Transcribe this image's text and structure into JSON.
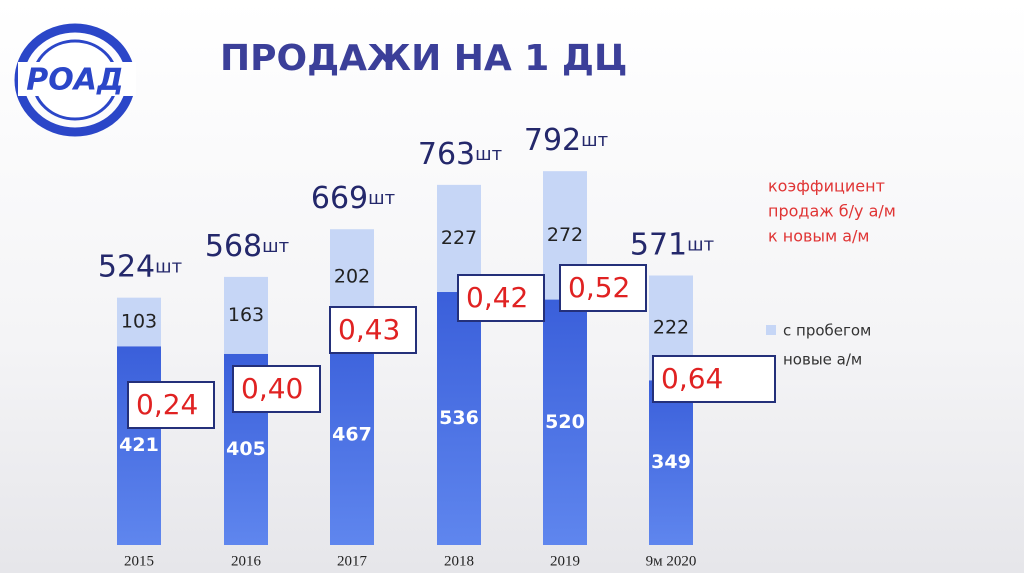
{
  "logo": {
    "text": "РОАД"
  },
  "chart_data": {
    "type": "stacked-bar",
    "title": "ПРОДАЖИ НА 1 ДЦ",
    "categories": [
      "2015",
      "2016",
      "2017",
      "2018",
      "2019",
      "9м 2020"
    ],
    "series": [
      {
        "name": "новые а/м",
        "color": "#3f66dc",
        "values": [
          421,
          405,
          467,
          536,
          520,
          349
        ]
      },
      {
        "name": "с пробегом",
        "color": "#c6d6f6",
        "values": [
          103,
          163,
          202,
          227,
          272,
          222
        ]
      }
    ],
    "totals": [
      524,
      568,
      669,
      763,
      792,
      571
    ],
    "total_unit": "шт",
    "ratios": [
      0.24,
      0.4,
      0.43,
      0.42,
      0.52,
      0.64
    ],
    "ratio_labels": [
      "0,24",
      "0,40",
      "0,43",
      "0,42",
      "0,52",
      "0,64"
    ],
    "annotation": [
      "коэффициент",
      "продаж б/у а/м",
      "к новым а/м"
    ]
  }
}
